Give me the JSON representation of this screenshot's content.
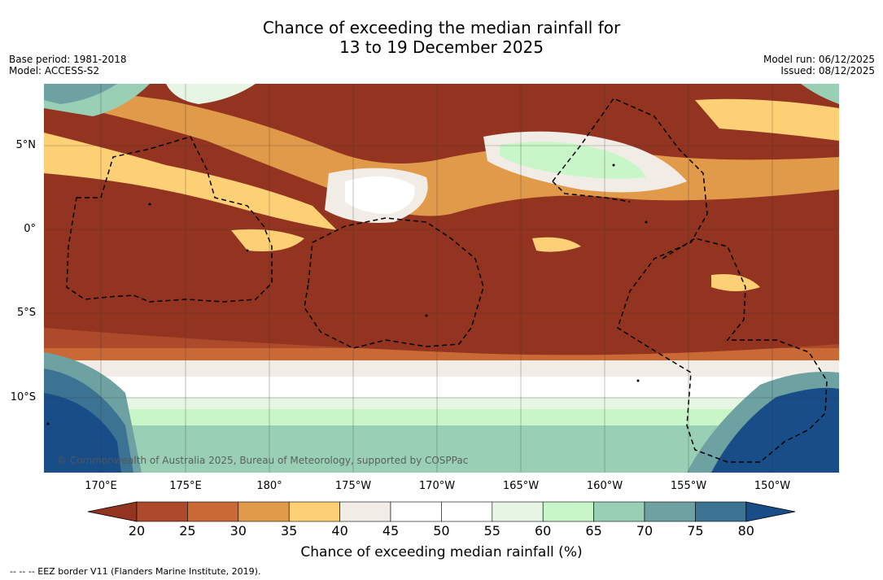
{
  "title_line1": "Chance of exceeding the median rainfall for",
  "title_line2": "13 to 19 December 2025",
  "base_period": "Base period: 1981-2018",
  "model": "Model: ACCESS-S2",
  "model_run": "Model run: 06/12/2025",
  "issued": "Issued: 08/12/2025",
  "lat_labels": [
    "5°N",
    "0°",
    "5°S",
    "10°S"
  ],
  "lon_labels": [
    "170°E",
    "175°E",
    "180°",
    "175°W",
    "170°W",
    "165°W",
    "160°W",
    "155°W",
    "150°W"
  ],
  "colorbar": {
    "title": "Chance of exceeding median rainfall (%)",
    "ticks": [
      "20",
      "25",
      "30",
      "35",
      "40",
      "45",
      "50",
      "55",
      "60",
      "65",
      "70",
      "75",
      "80"
    ],
    "colors": [
      "#933420",
      "#ad4a2c",
      "#c96935",
      "#e19a4a",
      "#fdd076",
      "#f1ede6",
      "#ffffff",
      "#ffffff",
      "#e7f5e4",
      "#c9f6c8",
      "#99cfb4",
      "#6ea1a2",
      "#3c7292",
      "#184d88"
    ]
  },
  "copyright": "© Commonwealth of Australia 2025, Bureau of Meteorology, supported by COSPPac",
  "footnote": "--  --  -- EEZ border V11 (Flanders Marine Institute, 2019)."
}
